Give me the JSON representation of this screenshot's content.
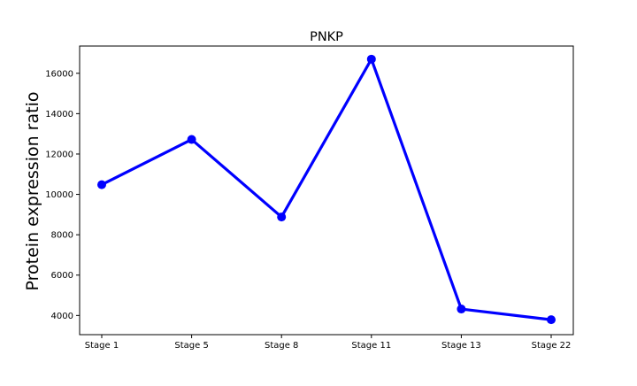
{
  "chart_data": {
    "type": "line",
    "title": "PNKP",
    "xlabel": "",
    "ylabel": "Protein expression ratio",
    "categories": [
      "Stage 1",
      "Stage 5",
      "Stage 8",
      "Stage 11",
      "Stage 13",
      "Stage 22"
    ],
    "series": [
      {
        "name": "PNKP",
        "values": [
          10480,
          12720,
          8880,
          16700,
          4320,
          3790
        ]
      }
    ],
    "ylim": [
      3050,
      17350
    ],
    "yticks": [
      4000,
      6000,
      8000,
      10000,
      12000,
      14000,
      16000
    ],
    "grid": false,
    "legend": "none",
    "line_color": "#0000ff"
  }
}
